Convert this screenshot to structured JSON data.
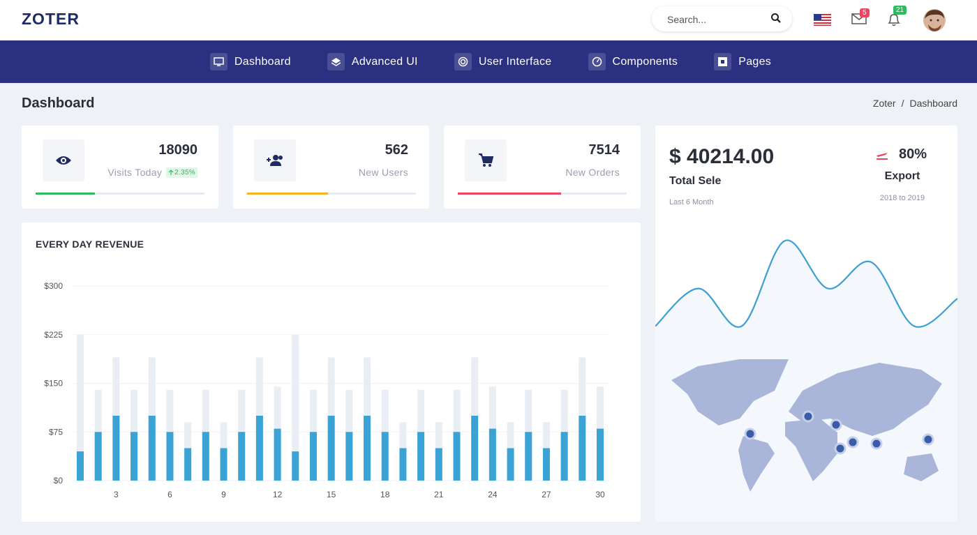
{
  "header": {
    "brand": "ZOTER",
    "search_placeholder": "Search...",
    "mail_badge": 5,
    "notification_badge": 21
  },
  "nav": {
    "items": [
      "Dashboard",
      "Advanced UI",
      "User Interface",
      "Components",
      "Pages"
    ]
  },
  "page": {
    "title": "Dashboard",
    "breadcrumb": [
      "Zoter",
      "Dashboard"
    ],
    "separator": "/"
  },
  "stats": [
    {
      "value": 18090,
      "label": "Visits Today",
      "change": "2.35%",
      "progress": 35,
      "color": "#2dbb5d"
    },
    {
      "value": 562,
      "label": "New Users",
      "progress": 48,
      "color": "#f5b225"
    },
    {
      "value": 7514,
      "label": "New Orders",
      "progress": 61,
      "color": "#ec4561"
    }
  ],
  "sales": {
    "amount": "$ 40214.00",
    "label": "Total Sele",
    "period": "Last 6 Month",
    "export_value": "80%",
    "export_label": "Export",
    "export_period": "2018 to 2019"
  },
  "chart_data": [
    {
      "type": "bar",
      "title": "EVERY DAY REVENUE",
      "categories": [
        null,
        null,
        "3",
        null,
        null,
        "6",
        null,
        null,
        "9",
        null,
        null,
        "12",
        null,
        null,
        "15",
        null,
        null,
        "18",
        null,
        null,
        "21",
        null,
        null,
        "24",
        null,
        null,
        "27",
        null,
        null,
        "30"
      ],
      "series": [
        {
          "color": "#e9eef5",
          "values": [
            225,
            140,
            190,
            140,
            190,
            140,
            90,
            140,
            90,
            140,
            190,
            145,
            225,
            140,
            190,
            140,
            190,
            140,
            90,
            140,
            90,
            140,
            190,
            145,
            90,
            140,
            90,
            140,
            190,
            145
          ]
        },
        {
          "color": "#3ba2d6",
          "values": [
            45,
            75,
            100,
            75,
            100,
            75,
            50,
            75,
            50,
            75,
            100,
            80,
            45,
            75,
            100,
            75,
            100,
            75,
            50,
            75,
            50,
            75,
            100,
            80,
            50,
            75,
            50,
            75,
            100,
            80
          ]
        }
      ],
      "ylim": [
        0,
        300
      ],
      "yticks": [
        {
          "value": 0,
          "label": "$0"
        },
        {
          "value": 75,
          "label": "$75"
        },
        {
          "value": 150,
          "label": "$150"
        },
        {
          "value": 225,
          "label": "$225"
        },
        {
          "value": 300,
          "label": "$300"
        }
      ],
      "grid": true
    },
    {
      "type": "area",
      "color": "#3b9fd1",
      "values": [
        18,
        48,
        18,
        86,
        48,
        69,
        18,
        40
      ]
    }
  ]
}
